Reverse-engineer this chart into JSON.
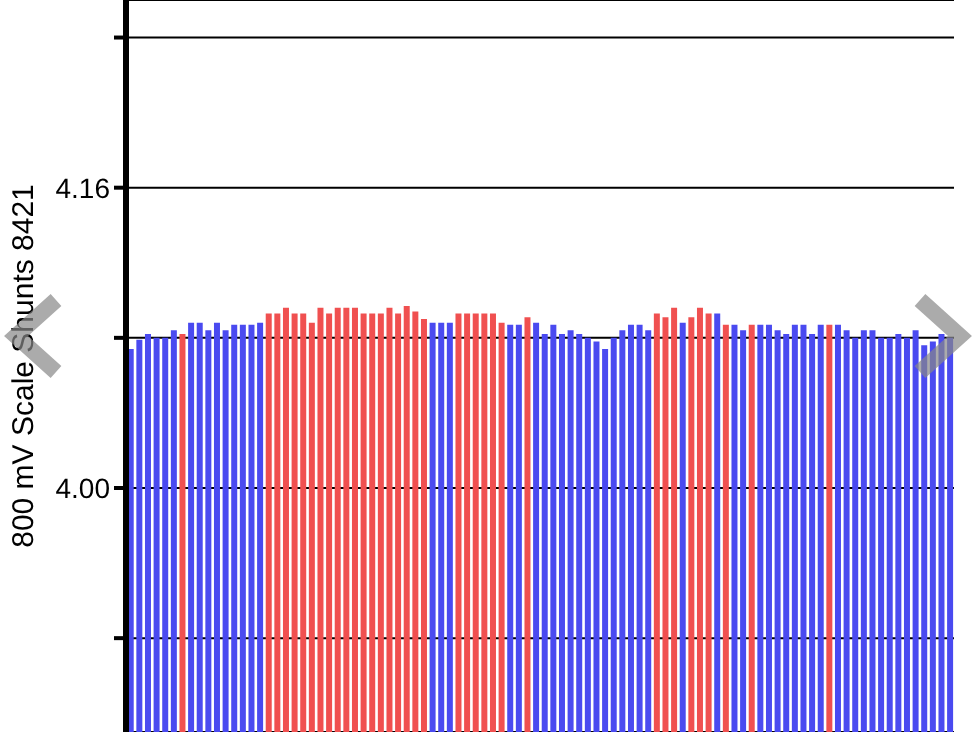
{
  "chart_data": {
    "type": "bar",
    "ylabel": "800 mV Scale  Shunts 8421",
    "categories": [
      null,
      null,
      null,
      null,
      null,
      null,
      null,
      null,
      null,
      null,
      null,
      null,
      null,
      null,
      null,
      null,
      null,
      null,
      null,
      null,
      null,
      null,
      null,
      null,
      null,
      null,
      null,
      null,
      null,
      null,
      null,
      null,
      null,
      null,
      null,
      null,
      null,
      null,
      null,
      null,
      null,
      null,
      null,
      null,
      null,
      null,
      null,
      null,
      null,
      null,
      null,
      null,
      null,
      null,
      null,
      null,
      null,
      null,
      null,
      null,
      null,
      null,
      null,
      null,
      null,
      null,
      null,
      null,
      null,
      null,
      null,
      null,
      null,
      null,
      null,
      null,
      null,
      null,
      null,
      null,
      null,
      null,
      null,
      null,
      null,
      null,
      null,
      null,
      null,
      null,
      null,
      null,
      null,
      null,
      null,
      null
    ],
    "values": [
      4.074,
      4.079,
      4.082,
      4.08,
      4.08,
      4.084,
      4.082,
      4.088,
      4.088,
      4.084,
      4.088,
      4.084,
      4.087,
      4.087,
      4.087,
      4.088,
      4.093,
      4.093,
      4.096,
      4.093,
      4.093,
      4.088,
      4.096,
      4.093,
      4.096,
      4.096,
      4.096,
      4.093,
      4.093,
      4.093,
      4.096,
      4.093,
      4.097,
      4.094,
      4.09,
      4.088,
      4.088,
      4.088,
      4.093,
      4.093,
      4.093,
      4.093,
      4.093,
      4.088,
      4.087,
      4.087,
      4.091,
      4.088,
      4.082,
      4.087,
      4.082,
      4.084,
      4.082,
      4.08,
      4.078,
      4.074,
      4.08,
      4.084,
      4.087,
      4.087,
      4.084,
      4.093,
      4.091,
      4.096,
      4.088,
      4.091,
      4.096,
      4.093,
      4.093,
      4.087,
      4.087,
      4.084,
      4.087,
      4.087,
      4.087,
      4.084,
      4.082,
      4.087,
      4.087,
      4.082,
      4.087,
      4.087,
      4.087,
      4.084,
      4.08,
      4.084,
      4.084,
      4.08,
      4.08,
      4.082,
      4.08,
      4.084,
      4.076,
      4.078,
      4.082,
      4.08
    ],
    "colors": [
      "#4a4af0",
      "#4a4af0",
      "#4a4af0",
      "#4a4af0",
      "#4a4af0",
      "#4a4af0",
      "#f05050",
      "#4a4af0",
      "#4a4af0",
      "#4a4af0",
      "#4a4af0",
      "#4a4af0",
      "#4a4af0",
      "#4a4af0",
      "#4a4af0",
      "#4a4af0",
      "#f05050",
      "#f05050",
      "#f05050",
      "#f05050",
      "#f05050",
      "#f05050",
      "#f05050",
      "#f05050",
      "#f05050",
      "#f05050",
      "#f05050",
      "#f05050",
      "#f05050",
      "#f05050",
      "#f05050",
      "#f05050",
      "#f05050",
      "#f05050",
      "#f05050",
      "#4a4af0",
      "#4a4af0",
      "#4a4af0",
      "#f05050",
      "#f05050",
      "#f05050",
      "#f05050",
      "#f05050",
      "#f05050",
      "#4a4af0",
      "#4a4af0",
      "#f05050",
      "#4a4af0",
      "#4a4af0",
      "#4a4af0",
      "#4a4af0",
      "#4a4af0",
      "#4a4af0",
      "#4a4af0",
      "#4a4af0",
      "#4a4af0",
      "#4a4af0",
      "#4a4af0",
      "#4a4af0",
      "#4a4af0",
      "#4a4af0",
      "#f05050",
      "#f05050",
      "#f05050",
      "#4a4af0",
      "#f05050",
      "#f05050",
      "#f05050",
      "#4a4af0",
      "#f05050",
      "#4a4af0",
      "#4a4af0",
      "#f05050",
      "#4a4af0",
      "#4a4af0",
      "#4a4af0",
      "#4a4af0",
      "#4a4af0",
      "#4a4af0",
      "#4a4af0",
      "#4a4af0",
      "#f05050",
      "#4a4af0",
      "#4a4af0",
      "#4a4af0",
      "#4a4af0",
      "#4a4af0",
      "#4a4af0",
      "#4a4af0",
      "#4a4af0",
      "#4a4af0",
      "#4a4af0",
      "#4a4af0",
      "#4a4af0",
      "#4a4af0",
      "#4a4af0"
    ],
    "ylim": [
      3.87,
      4.26
    ],
    "yticks": [
      {
        "value": 3.92,
        "label": null
      },
      {
        "value": 4,
        "label": "4.00"
      },
      {
        "value": 4.08,
        "label": null
      },
      {
        "value": 4.16,
        "label": "4.16"
      },
      {
        "value": 4.24,
        "label": null
      }
    ],
    "grid": "y"
  }
}
